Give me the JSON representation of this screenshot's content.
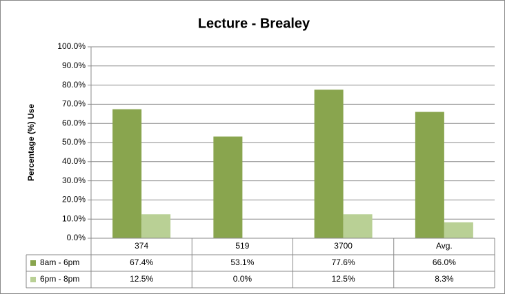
{
  "chart_data": {
    "type": "bar",
    "title": "Lecture - Brealey",
    "y_label": "Percentage (%) Use",
    "categories": [
      "374",
      "519",
      "3700",
      "Avg."
    ],
    "series": [
      {
        "name": "8am - 6pm",
        "color": "#89a54e",
        "values": [
          67.4,
          53.1,
          77.6,
          66.0
        ],
        "value_labels": [
          "67.4%",
          "53.1%",
          "77.6%",
          "66.0%"
        ]
      },
      {
        "name": "6pm - 8pm",
        "color": "#b9d095",
        "values": [
          12.5,
          0.0,
          12.5,
          8.3
        ],
        "value_labels": [
          "12.5%",
          "0.0%",
          "12.5%",
          "8.3%"
        ]
      }
    ],
    "ylim": [
      0,
      100
    ],
    "yticks": [
      {
        "value": 0,
        "label": "0.0%"
      },
      {
        "value": 10,
        "label": "10.0%"
      },
      {
        "value": 20,
        "label": "20.0%"
      },
      {
        "value": 30,
        "label": "30.0%"
      },
      {
        "value": 40,
        "label": "40.0%"
      },
      {
        "value": 50,
        "label": "50.0%"
      },
      {
        "value": 60,
        "label": "60.0%"
      },
      {
        "value": 70,
        "label": "70.0%"
      },
      {
        "value": 80,
        "label": "80.0%"
      },
      {
        "value": 90,
        "label": "90.0%"
      },
      {
        "value": 100,
        "label": "100.0%"
      }
    ],
    "grid": true,
    "data_table": true
  }
}
